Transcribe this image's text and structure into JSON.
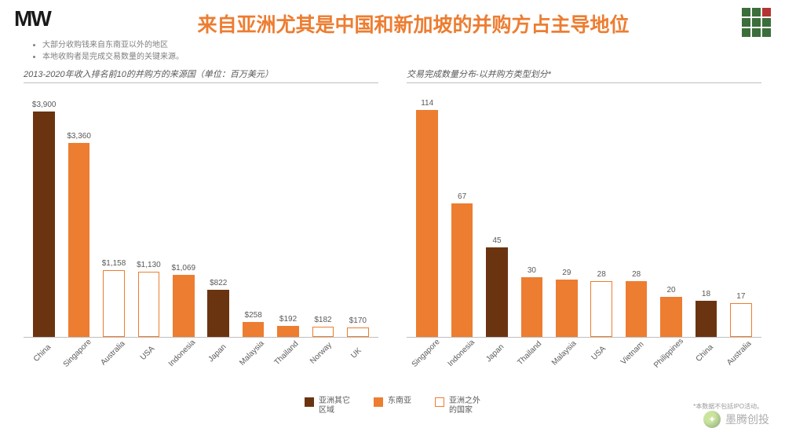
{
  "header": {
    "logo_text": "MW",
    "title": "来自亚洲尤其是中国和新加坡的并购方占主导地位",
    "corner_colors": [
      "#3b6e3b",
      "#3b6e3b",
      "#b43434",
      "#3b6e3b",
      "#3b6e3b",
      "#3b6e3b",
      "#3b6e3b",
      "#3b6e3b",
      "#3b6e3b"
    ]
  },
  "bullets": [
    "大部分收购钱来自东南亚以外的地区",
    "本地收购者是完成交易数量的关键来源。"
  ],
  "left_chart": {
    "subtitle": "2013-2020年收入排名前10的并购方的来源国（单位：百万美元）",
    "type": "bar",
    "ymax": 4200,
    "categories": [
      "China",
      "Singapore",
      "Australia",
      "USA",
      "Indonesia",
      "Japan",
      "Malaysia",
      "Thailand",
      "Norway",
      "UK"
    ],
    "values": [
      3900,
      3360,
      1158,
      1130,
      1069,
      822,
      258,
      192,
      182,
      170
    ],
    "labels": [
      "$3,900",
      "$3,360",
      "$1,158",
      "$1,130",
      "$1,069",
      "$822",
      "$258",
      "$192",
      "$182",
      "$170"
    ],
    "series": [
      "asia_other",
      "sea",
      "outside",
      "outside",
      "sea",
      "asia_other",
      "sea",
      "sea",
      "outside",
      "outside"
    ]
  },
  "right_chart": {
    "subtitle": "交易完成数量分布-以并购方类型划分*",
    "type": "bar",
    "ymax": 122,
    "categories": [
      "Singapore",
      "Indonesia",
      "Japan",
      "Thailand",
      "Malaysia",
      "USA",
      "Vietnam",
      "Philippines",
      "China",
      "Australia"
    ],
    "values": [
      114,
      67,
      45,
      30,
      29,
      28,
      28,
      20,
      18,
      17
    ],
    "labels": [
      "114",
      "67",
      "45",
      "30",
      "29",
      "28",
      "28",
      "20",
      "18",
      "17"
    ],
    "series": [
      "sea",
      "sea",
      "asia_other",
      "sea",
      "sea",
      "outside",
      "sea",
      "sea",
      "asia_other",
      "outside"
    ]
  },
  "series_style": {
    "asia_other": {
      "fill": "#6b3410",
      "border": "#6b3410"
    },
    "sea": {
      "fill": "#ed7d31",
      "border": "#ed7d31"
    },
    "outside": {
      "fill": "#ffffff",
      "border": "#ed7d31"
    }
  },
  "legend": [
    {
      "series": "asia_other",
      "label": "亚洲其它\n区域"
    },
    {
      "series": "sea",
      "label": "东南亚"
    },
    {
      "series": "outside",
      "label": "亚洲之外\n的国家"
    }
  ],
  "footnote": "*本数据不包括IPO活动。",
  "watermark": {
    "text": "墨腾创投"
  },
  "colors": {
    "title": "#ed7d31",
    "text_muted": "#595959",
    "axis": "#bfbfbf",
    "background": "#ffffff"
  },
  "fonts": {
    "title_size": 25,
    "subtitle_size": 11,
    "bullet_size": 10,
    "bar_label_size": 10,
    "tick_size": 10,
    "legend_size": 10
  }
}
